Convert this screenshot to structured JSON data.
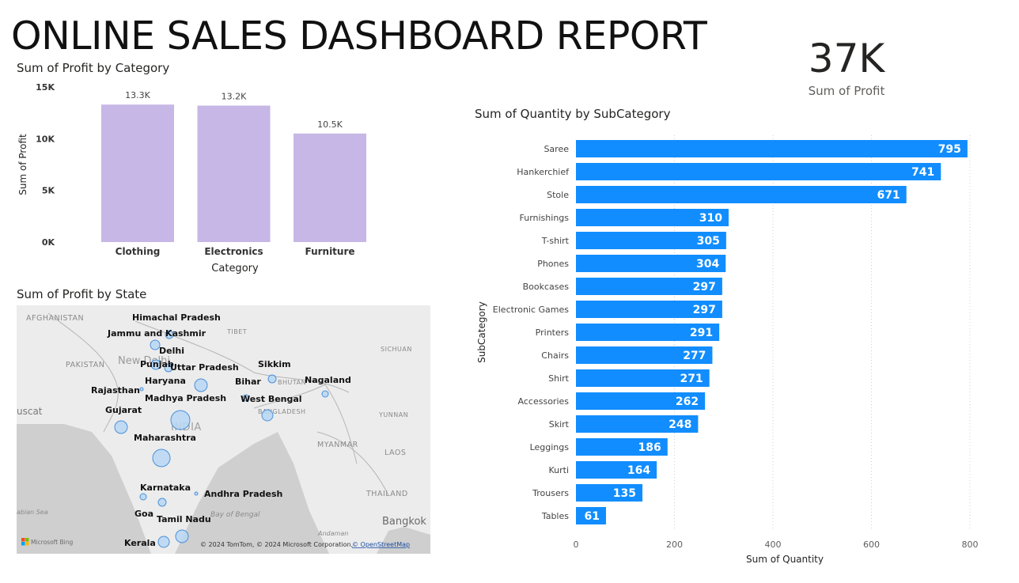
{
  "title": "ONLINE SALES DASHBOARD REPORT",
  "card": {
    "value": "37K",
    "label": "Sum of Profit"
  },
  "chart_data": [
    {
      "id": "profit-by-category",
      "type": "bar",
      "title": "Sum of Profit by Category",
      "xlabel": "Category",
      "ylabel": "Sum of Profit",
      "categories": [
        "Clothing",
        "Electronics",
        "Furniture"
      ],
      "values": [
        13300,
        13200,
        10500
      ],
      "data_labels": [
        "13.3K",
        "13.2K",
        "10.5K"
      ],
      "ylim": [
        0,
        15000
      ],
      "yticks": [
        0,
        5000,
        10000,
        15000
      ],
      "ytick_labels": [
        "0K",
        "5K",
        "10K",
        "15K"
      ],
      "color": "#c6b7e6",
      "grid": false
    },
    {
      "id": "quantity-by-subcategory",
      "type": "bar",
      "orientation": "horizontal",
      "title": "Sum of Quantity by SubCategory",
      "xlabel": "Sum of Quantity",
      "ylabel": "SubCategory",
      "categories": [
        "Saree",
        "Hankerchief",
        "Stole",
        "Furnishings",
        "T-shirt",
        "Phones",
        "Bookcases",
        "Electronic Games",
        "Printers",
        "Chairs",
        "Shirt",
        "Accessories",
        "Skirt",
        "Leggings",
        "Kurti",
        "Trousers",
        "Tables"
      ],
      "values": [
        795,
        741,
        671,
        310,
        305,
        304,
        297,
        297,
        291,
        277,
        271,
        262,
        248,
        186,
        164,
        135,
        61
      ],
      "xlim": [
        0,
        800
      ],
      "xticks": [
        0,
        200,
        400,
        600,
        800
      ],
      "color": "#118dff",
      "grid": true
    }
  ],
  "map": {
    "title": "Sum of Profit by State",
    "states": [
      "Himachal Pradesh",
      "Jammu and Kashmir",
      "Delhi",
      "Punjab",
      "Uttar Pradesh",
      "Sikkim",
      "Nagaland",
      "Haryana",
      "Bihar",
      "Rajasthan",
      "Madhya Pradesh",
      "West Bengal",
      "Gujarat",
      "Maharashtra",
      "Karnataka",
      "Andhra Pradesh",
      "Goa",
      "Tamil Nadu",
      "Kerala"
    ],
    "base_labels": [
      "AFGHANISTAN",
      "TIBET",
      "SICHUAN",
      "PAKISTAN",
      "New Delhi",
      "BHUTAN",
      "BANGLADESH",
      "uscat",
      "YUNNAN",
      "INDIA",
      "MYANMAR",
      "LAOS",
      "THAILAND",
      "abian Sea",
      "Bay of Bengal",
      "Bangkok",
      "Andaman"
    ],
    "bing": "Microsoft Bing",
    "copyright": "© 2024 TomTom, © 2024 Microsoft Corporation,",
    "osm": "© OpenStreetMap"
  }
}
